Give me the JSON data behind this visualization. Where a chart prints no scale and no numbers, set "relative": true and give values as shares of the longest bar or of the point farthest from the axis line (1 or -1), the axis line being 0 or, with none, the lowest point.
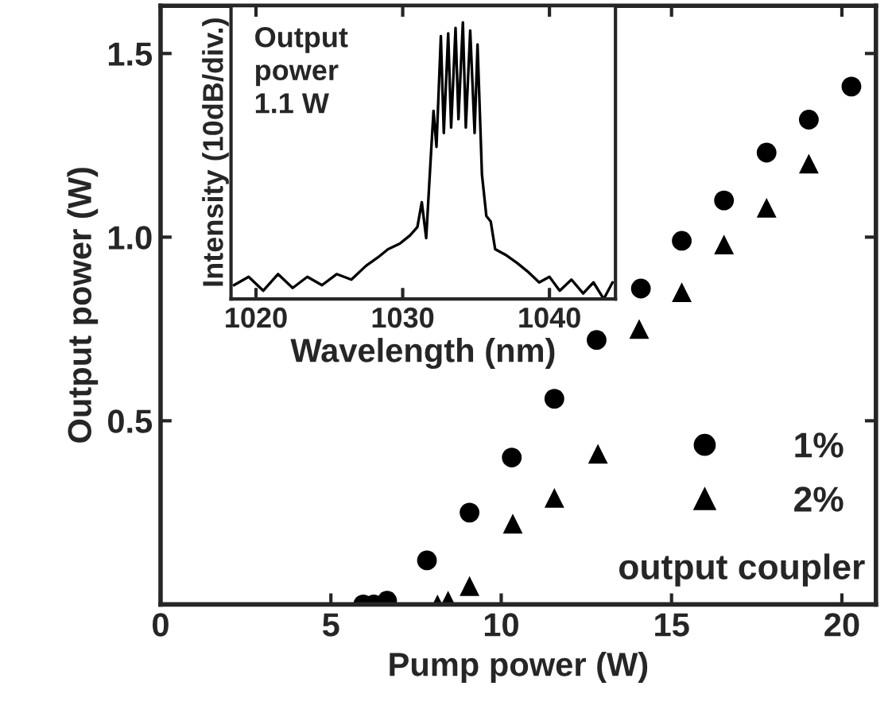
{
  "chart_data": [
    {
      "type": "scatter",
      "xlabel": "Pump power (W)",
      "ylabel": "Output power (W)",
      "xlim": [
        0,
        21
      ],
      "ylim": [
        0,
        1.63
      ],
      "xticks": [
        0,
        5,
        10,
        15,
        20
      ],
      "yticks": [
        {
          "value": 0.5,
          "label": "0.5"
        },
        {
          "value": 1.0,
          "label": "1.0"
        },
        {
          "value": 1.5,
          "label": "1.5"
        }
      ],
      "legend": "bottom right",
      "grid": false,
      "series": [
        {
          "name": "1%",
          "color": "#000000",
          "marker": "circle",
          "x": [
            5.95,
            6.26,
            6.65,
            7.82,
            9.07,
            10.31,
            11.56,
            12.8,
            14.1,
            15.3,
            16.54,
            17.79,
            19.03,
            20.28
          ],
          "values": [
            0.0,
            0.0,
            0.01,
            0.12,
            0.25,
            0.4,
            0.56,
            0.72,
            0.86,
            0.99,
            1.1,
            1.23,
            1.32,
            1.41
          ]
        },
        {
          "name": "2%",
          "color": "#000000",
          "marker": "triangle",
          "x": [
            8.13,
            8.44,
            9.07,
            10.34,
            11.56,
            12.84,
            14.05,
            15.3,
            16.54,
            17.79,
            19.03
          ],
          "values": [
            0.0,
            0.01,
            0.05,
            0.22,
            0.29,
            0.41,
            0.75,
            0.85,
            0.98,
            1.08,
            1.2
          ]
        }
      ],
      "annotations": [
        "output coupler"
      ]
    },
    {
      "type": "line",
      "relative": true,
      "xlabel": "Wavelength (nm)",
      "ylabel": "Intensity (10dB/div.)",
      "xlim": [
        1018.3,
        1044.5
      ],
      "xticks": [
        1020,
        1030,
        1040
      ],
      "grid": false,
      "series": [
        {
          "color": "#000000",
          "x": [
            1018.5,
            1019.5,
            1020.5,
            1021.5,
            1022.5,
            1023.5,
            1024.5,
            1025.5,
            1026.5,
            1027.5,
            1028.3,
            1029,
            1029.8,
            1030.5,
            1031,
            1031.3,
            1031.6,
            1031.9,
            1032.1,
            1032.3,
            1032.6,
            1032.8,
            1033.1,
            1033.3,
            1033.6,
            1033.8,
            1034.1,
            1034.3,
            1034.6,
            1034.9,
            1035.1,
            1035.4,
            1035.7,
            1036,
            1036.3,
            1037,
            1037.8,
            1038.5,
            1039.3,
            1040,
            1040.7,
            1041.5,
            1042.3,
            1043,
            1043.7,
            1044.3
          ],
          "values": [
            0.05,
            0.08,
            0.03,
            0.09,
            0.04,
            0.08,
            0.05,
            0.09,
            0.07,
            0.12,
            0.15,
            0.18,
            0.2,
            0.23,
            0.26,
            0.35,
            0.22,
            0.5,
            0.68,
            0.55,
            0.95,
            0.6,
            0.96,
            0.62,
            0.98,
            0.65,
            1.0,
            0.62,
            0.97,
            0.6,
            0.92,
            0.45,
            0.3,
            0.28,
            0.18,
            0.16,
            0.13,
            0.1,
            0.06,
            0.08,
            0.03,
            0.07,
            0.02,
            0.06,
            0.0,
            0.06
          ]
        }
      ],
      "annotations": [
        "Output\npower\n1.1 W"
      ]
    }
  ]
}
